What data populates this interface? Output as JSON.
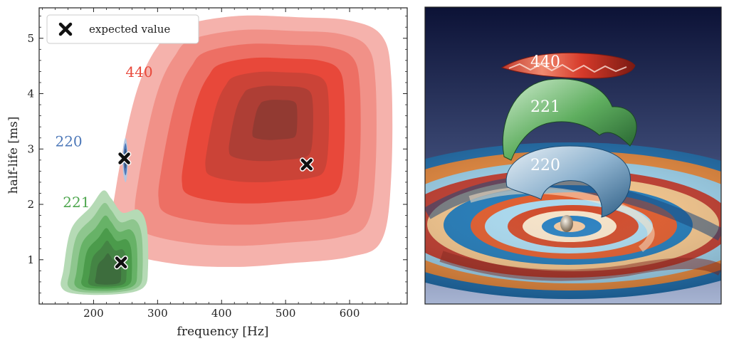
{
  "chart_data": {
    "type": "contour",
    "xlabel": "frequency [Hz]",
    "ylabel": "half-life [ms]",
    "xlim": [
      115,
      690
    ],
    "ylim": [
      0.2,
      5.55
    ],
    "xticks": [
      200,
      300,
      400,
      500,
      600
    ],
    "yticks": [
      1,
      2,
      3,
      4,
      5
    ],
    "legend": {
      "placement": "top-left",
      "entries": [
        {
          "label": "expected value",
          "marker": "x"
        }
      ]
    },
    "series": [
      {
        "name": "440",
        "color": "#e8483a",
        "levels": 7,
        "label_pos": {
          "x": 250,
          "y": 4.3
        },
        "expected": {
          "x": 533,
          "y": 2.72
        },
        "outline": [
          [
            275,
            4.3
          ],
          [
            300,
            4.85
          ],
          [
            330,
            5.2
          ],
          [
            420,
            5.4
          ],
          [
            520,
            5.38
          ],
          [
            600,
            5.32
          ],
          [
            650,
            5.05
          ],
          [
            665,
            4.3
          ],
          [
            665,
            2.5
          ],
          [
            650,
            1.35
          ],
          [
            600,
            1.05
          ],
          [
            500,
            0.93
          ],
          [
            420,
            0.87
          ],
          [
            330,
            0.92
          ],
          [
            245,
            1.15
          ],
          [
            228,
            1.55
          ],
          [
            235,
            2.3
          ],
          [
            255,
            3.5
          ]
        ],
        "core": {
          "x": 490,
          "y": 3.6,
          "shrink": 0.16
        }
      },
      {
        "name": "220",
        "color": "#4d78b8",
        "levels": 3,
        "label_pos": {
          "x": 140,
          "y": 3.05
        },
        "expected": {
          "x": 248,
          "y": 2.83
        },
        "outline": [
          [
            250,
            3.2
          ],
          [
            253,
            3.0
          ],
          [
            253,
            2.6
          ],
          [
            250,
            2.4
          ],
          [
            246,
            2.6
          ],
          [
            246,
            3.0
          ]
        ],
        "core": {
          "x": 250,
          "y": 2.85,
          "shrink": 0.45
        }
      },
      {
        "name": "221",
        "color": "#4ea64e",
        "levels": 6,
        "label_pos": {
          "x": 152,
          "y": 1.95
        },
        "expected": {
          "x": 243,
          "y": 0.95
        },
        "outline": [
          [
            153,
            0.82
          ],
          [
            165,
            1.55
          ],
          [
            195,
            1.95
          ],
          [
            215,
            2.25
          ],
          [
            228,
            2.1
          ],
          [
            245,
            1.85
          ],
          [
            270,
            1.9
          ],
          [
            283,
            1.6
          ],
          [
            285,
            0.85
          ],
          [
            278,
            0.5
          ],
          [
            240,
            0.38
          ],
          [
            175,
            0.38
          ],
          [
            150,
            0.5
          ]
        ],
        "core": {
          "x": 225,
          "y": 0.63,
          "shrink": 0.3
        }
      }
    ]
  },
  "render": {
    "labels": [
      "440",
      "221",
      "220"
    ],
    "background_top": "#0c1236",
    "background_bottom": "#a7b4d2"
  }
}
